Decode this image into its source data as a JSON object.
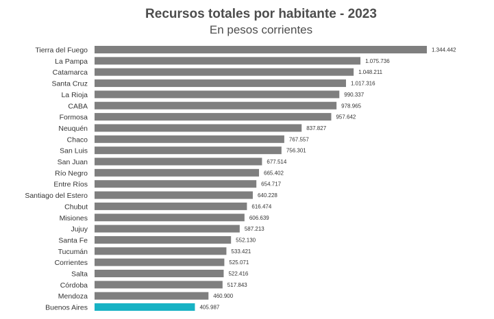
{
  "chart_data": {
    "type": "bar",
    "orientation": "horizontal",
    "title": "Recursos totales por habitante -  2023",
    "subtitle": "En pesos corrientes",
    "xlabel": "",
    "ylabel": "",
    "grid": false,
    "legend": "none",
    "xlim": [
      0,
      1344442
    ],
    "colors": {
      "default": "#7f7f7f",
      "highlight": "#17b2c4"
    },
    "highlight_category": "Buenos Aires",
    "categories": [
      "Tierra del Fuego",
      "La Pampa",
      "Catamarca",
      "Santa Cruz",
      "La Rioja",
      "CABA",
      "Formosa",
      "Neuquén",
      "Chaco",
      "San Luis",
      "San Juan",
      "Río Negro",
      "Entre Ríos",
      "Santiago del Estero",
      "Chubut",
      "Misiones",
      "Jujuy",
      "Santa Fe",
      "Tucumán",
      "Corrientes",
      "Salta",
      "Córdoba",
      "Mendoza",
      "Buenos Aires"
    ],
    "values": [
      1344442,
      1075736,
      1048211,
      1017316,
      990337,
      978965,
      957642,
      837827,
      767557,
      756301,
      677514,
      665402,
      654717,
      640228,
      616474,
      606639,
      587213,
      552130,
      533421,
      525071,
      522416,
      517843,
      460900,
      405987
    ],
    "value_labels": [
      "1.344.442",
      "1.075.736",
      "1.048.211",
      "1.017.316",
      "990.337",
      "978.965",
      "957.642",
      "837.827",
      "767.557",
      "756.301",
      "677.514",
      "665.402",
      "654.717",
      "640.228",
      "616.474",
      "606.639",
      "587.213",
      "552.130",
      "533.421",
      "525.071",
      "522.416",
      "517.843",
      "460.900",
      "405.987"
    ]
  }
}
